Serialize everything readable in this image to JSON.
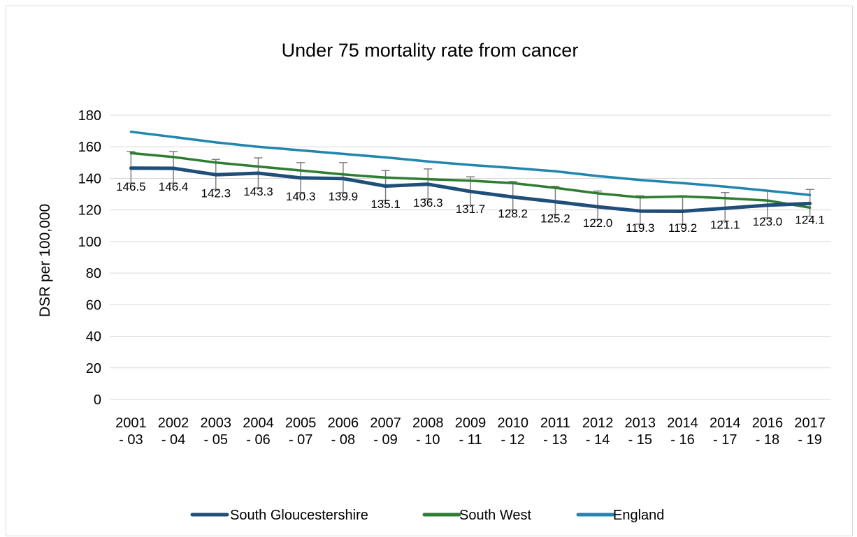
{
  "chart_data": {
    "type": "line",
    "title": "Under 75 mortality rate from cancer",
    "xlabel": "",
    "ylabel": "DSR per 100,000",
    "ylim": [
      0,
      180
    ],
    "yticks": [
      0,
      20,
      40,
      60,
      80,
      100,
      120,
      140,
      160,
      180
    ],
    "grid": true,
    "legend_position": "bottom",
    "categories": [
      [
        "2001",
        "- 03"
      ],
      [
        "2002",
        "- 04"
      ],
      [
        "2003",
        "- 05"
      ],
      [
        "2004",
        "- 06"
      ],
      [
        "2005",
        "- 07"
      ],
      [
        "2006",
        "- 08"
      ],
      [
        "2007",
        "- 09"
      ],
      [
        "2008",
        "- 10"
      ],
      [
        "2009",
        "- 11"
      ],
      [
        "2010",
        "- 12"
      ],
      [
        "2011",
        "- 13"
      ],
      [
        "2012",
        "- 14"
      ],
      [
        "2013",
        "- 15"
      ],
      [
        "2014",
        "- 16"
      ],
      [
        "2014",
        "- 17"
      ],
      [
        "2016",
        "- 18"
      ],
      [
        "2017",
        "- 19"
      ]
    ],
    "series": [
      {
        "name": "South Gloucestershire",
        "color": "#1f4e79",
        "values": [
          146.5,
          146.4,
          142.3,
          143.3,
          140.3,
          139.9,
          135.1,
          136.3,
          131.7,
          128.2,
          125.2,
          122.0,
          119.3,
          119.2,
          121.1,
          123.0,
          124.1
        ],
        "data_labels": [
          "146.5",
          "146.4",
          "142.3",
          "143.3",
          "140.3",
          "139.9",
          "135.1",
          "136.3",
          "131.7",
          "128.2",
          "125.2",
          "122.0",
          "119.3",
          "119.2",
          "121.1",
          "123.0",
          "124.1"
        ],
        "error_low": [
          137,
          137,
          133,
          134,
          131,
          131,
          126,
          127,
          123,
          120,
          117,
          114,
          111,
          111,
          113,
          115,
          116
        ],
        "error_high": [
          157,
          157,
          152,
          153,
          150,
          150,
          145,
          146,
          141,
          138,
          135,
          132,
          129,
          129,
          131,
          132,
          133
        ]
      },
      {
        "name": "South West",
        "color": "#2e7d32",
        "values": [
          156,
          153.5,
          150,
          147.5,
          145,
          142.5,
          140.5,
          139.5,
          138.5,
          137,
          134,
          130.5,
          128,
          128.5,
          127.5,
          126,
          121.5
        ]
      },
      {
        "name": "England",
        "color": "#2186ad",
        "values": [
          169.5,
          166.2,
          162.8,
          160,
          157.8,
          155.5,
          153.3,
          150.7,
          148.5,
          146.6,
          144.5,
          141.5,
          139,
          137,
          134.8,
          132.2,
          129.5
        ]
      }
    ],
    "error_bar_color": "#7f7f7f"
  }
}
